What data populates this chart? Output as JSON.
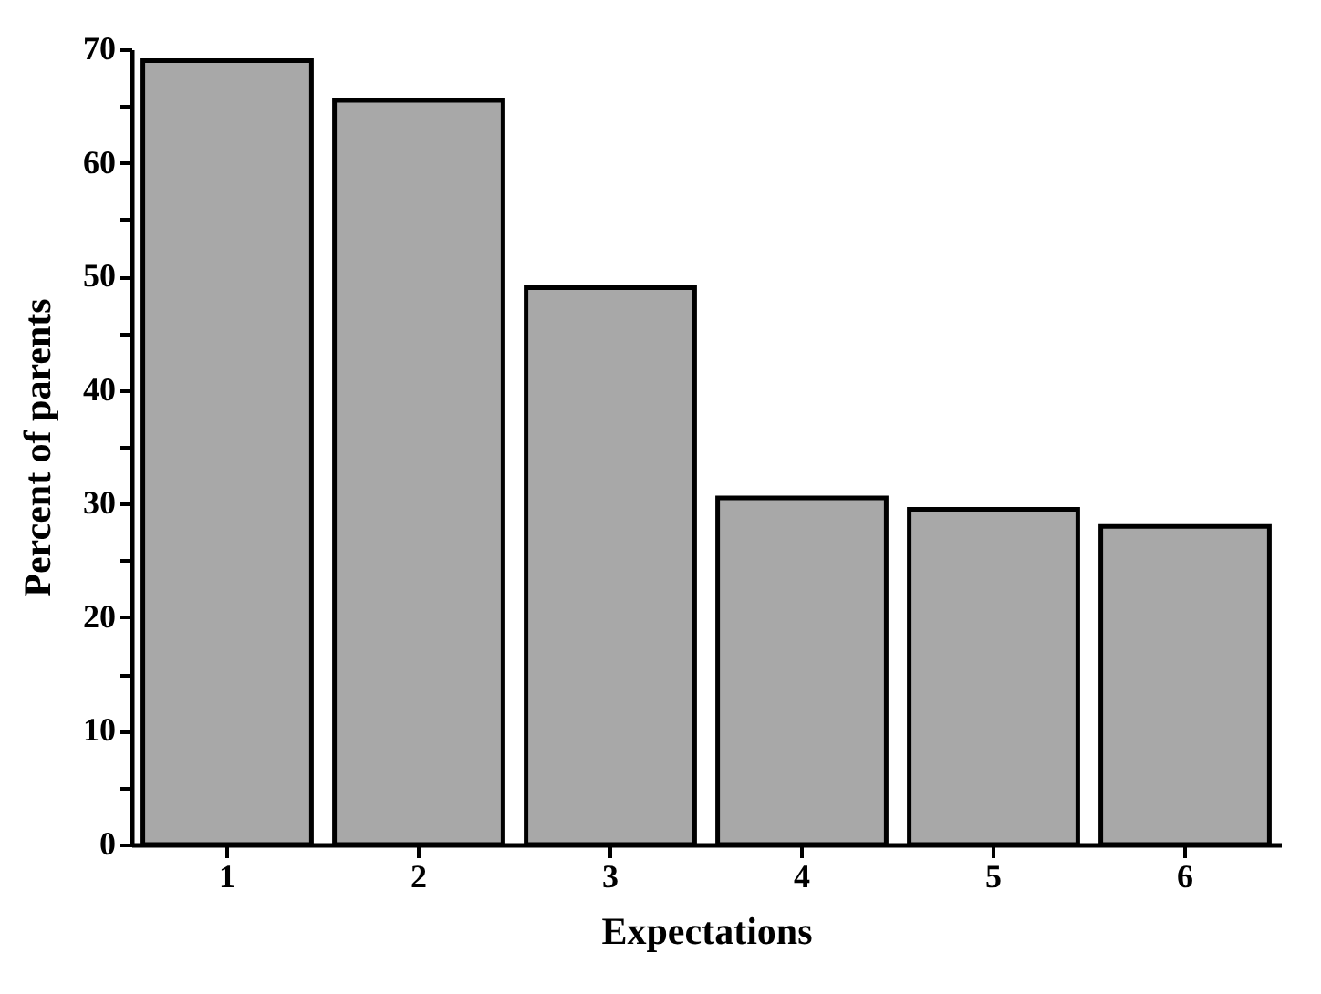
{
  "chart_data": {
    "type": "bar",
    "xlabel": "Expectations",
    "ylabel": "Percent of parents",
    "categories": [
      "1",
      "2",
      "3",
      "4",
      "5",
      "6"
    ],
    "values": [
      69,
      65.5,
      49,
      30.5,
      29.5,
      28
    ],
    "color": "#a8a8a8",
    "ylim": [
      0,
      70
    ],
    "yticks": [
      0,
      {
        "value": 5,
        "label": null
      },
      10,
      {
        "value": 15,
        "label": null
      },
      20,
      {
        "value": 25,
        "label": null
      },
      30,
      {
        "value": 35,
        "label": null
      },
      40,
      {
        "value": 45,
        "label": null
      },
      50,
      {
        "value": 55,
        "label": null
      },
      60,
      {
        "value": 65,
        "label": null
      },
      70
    ],
    "grid": false
  }
}
